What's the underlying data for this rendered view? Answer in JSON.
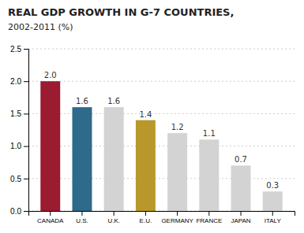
{
  "chart_data": {
    "type": "bar",
    "title": "REAL GDP GROWTH IN G-7 COUNTRIES,",
    "subtitle": "2002-2011 (%)",
    "categories": [
      "CANADA",
      "U.S.",
      "U.K.",
      "E.U.",
      "GERMANY",
      "FRANCE",
      "JAPAN",
      "ITALY"
    ],
    "values": [
      2.0,
      1.6,
      1.6,
      1.4,
      1.2,
      1.1,
      0.7,
      0.3
    ],
    "value_labels": [
      "2.0",
      "1.6",
      "1.6",
      "1.4",
      "1.2",
      "1.1",
      "0.7",
      "0.3"
    ],
    "colors": [
      "#9B1B30",
      "#2E6A8A",
      "#D3D3D3",
      "#B8982A",
      "#D3D3D3",
      "#D3D3D3",
      "#D3D3D3",
      "#D3D3D3"
    ],
    "ylim": [
      0,
      2.5
    ],
    "yticks": [
      {
        "value": 0.0,
        "label": "0.0"
      },
      0.5,
      {
        "value": 1.0,
        "label": "1.0"
      },
      1.5,
      {
        "value": 2.0,
        "label": "2.0"
      },
      2.5
    ],
    "grid": true,
    "data_labels": true
  }
}
